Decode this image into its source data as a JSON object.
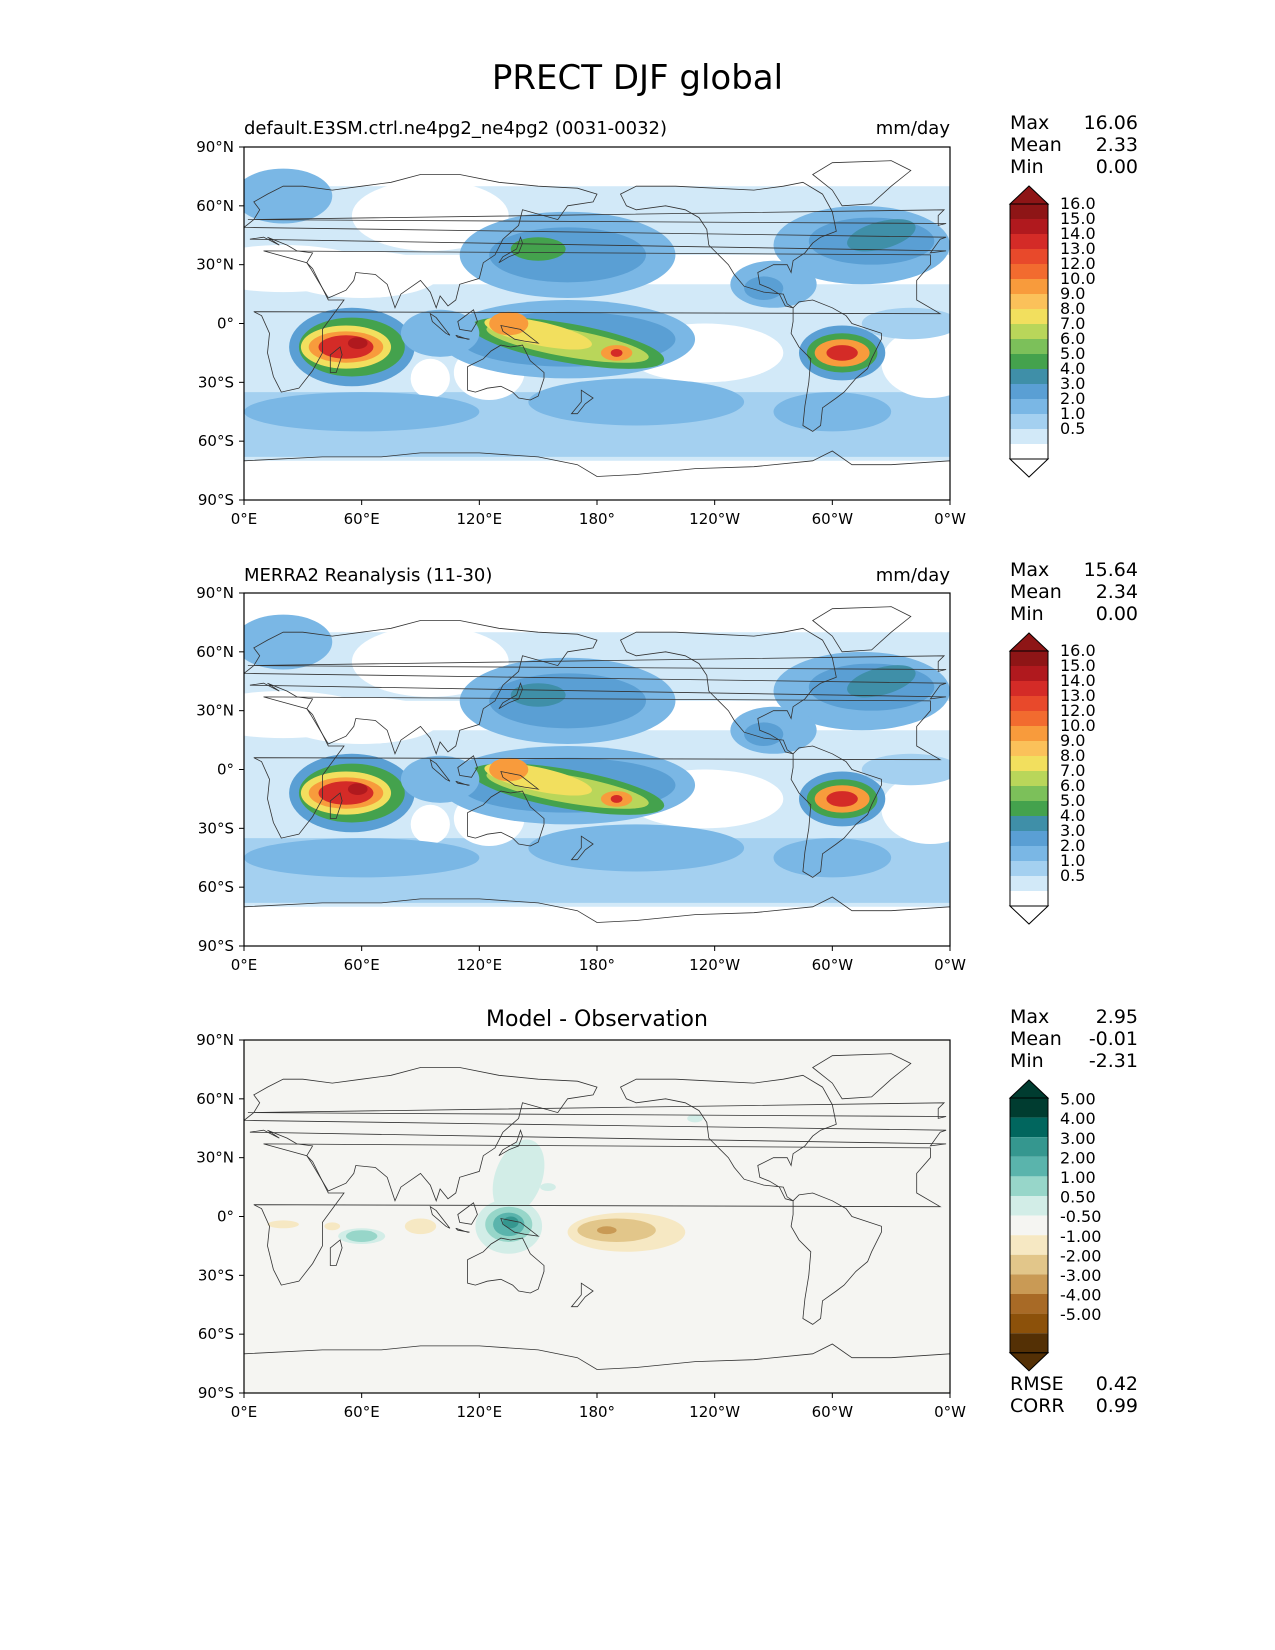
{
  "title": "PRECT DJF global",
  "panels": [
    {
      "left_title": "default.E3SM.ctrl.ne4pg2_ne4pg2 (0031-0032)",
      "right_title": "mm/day",
      "center_title": "",
      "stats": [
        {
          "label": "Max",
          "value": "16.06"
        },
        {
          "label": "Mean",
          "value": "2.33"
        },
        {
          "label": "Min",
          "value": "0.00"
        }
      ],
      "colorbar": "precip"
    },
    {
      "left_title": "MERRA2 Reanalysis (11-30)",
      "right_title": "mm/day",
      "center_title": "",
      "stats": [
        {
          "label": "Max",
          "value": "15.64"
        },
        {
          "label": "Mean",
          "value": "2.34"
        },
        {
          "label": "Min",
          "value": "0.00"
        }
      ],
      "colorbar": "precip"
    },
    {
      "left_title": "",
      "right_title": "",
      "center_title": "Model - Observation",
      "stats": [
        {
          "label": "Max",
          "value": "2.95"
        },
        {
          "label": "Mean",
          "value": "-0.01"
        },
        {
          "label": "Min",
          "value": "-2.31"
        }
      ],
      "colorbar": "diff",
      "extra_stats": [
        {
          "label": "RMSE",
          "value": "0.42"
        },
        {
          "label": "CORR",
          "value": "0.99"
        }
      ]
    }
  ],
  "axes": {
    "lon_ticks": [
      "0°E",
      "60°E",
      "120°E",
      "180°",
      "120°W",
      "60°W",
      "0°W"
    ],
    "lat_ticks": [
      "90°N",
      "60°N",
      "30°N",
      "0°",
      "30°S",
      "60°S",
      "90°S"
    ]
  },
  "colorbars": {
    "precip": {
      "labels": [
        "16.0",
        "15.0",
        "14.0",
        "13.0",
        "12.0",
        "10.0",
        "9.0",
        "8.0",
        "7.0",
        "6.0",
        "5.0",
        "4.0",
        "3.0",
        "2.0",
        "1.0",
        "0.5"
      ],
      "colors": [
        "#8e1516",
        "#b0191e",
        "#d42b27",
        "#e8492b",
        "#f26b2f",
        "#f89b3c",
        "#fbc15a",
        "#f2df5e",
        "#b9d65a",
        "#7cc05a",
        "#44a24d",
        "#3f8fa8",
        "#5a9fd4",
        "#7ab7e5",
        "#a4d0f0",
        "#d2e9f8",
        "#ffffff"
      ]
    },
    "diff": {
      "labels": [
        "5.00",
        "4.00",
        "3.00",
        "2.00",
        "1.00",
        "0.50",
        "-0.50",
        "-1.00",
        "-2.00",
        "-3.00",
        "-4.00",
        "-5.00"
      ],
      "colors": [
        "#003c30",
        "#01665e",
        "#35978f",
        "#5ab4ac",
        "#97d6c9",
        "#d2ede7",
        "#f5f5f2",
        "#f6e8c3",
        "#e2c68a",
        "#c99a55",
        "#a86a26",
        "#8c510a",
        "#543005"
      ]
    }
  },
  "field_colors": {
    "background": "#f5f5f2",
    "p_light": "#d2e9f8",
    "p_l2": "#a4d0f0",
    "p_l3": "#7ab7e5",
    "p_l4": "#5a9fd4",
    "p_l5": "#3f8fa8",
    "p_green": "#44a24d",
    "p_lgreen": "#b9d65a",
    "p_yellow": "#f2df5e",
    "p_orange": "#f89b3c",
    "p_red": "#d42b27",
    "p_dred": "#b0191e",
    "d_tan": "#f6e8c3",
    "d_tan2": "#e2c68a",
    "d_brown": "#c99a55",
    "d_teal1": "#d2ede7",
    "d_teal2": "#97d6c9",
    "d_teal3": "#5ab4ac",
    "d_teal4": "#35978f"
  }
}
